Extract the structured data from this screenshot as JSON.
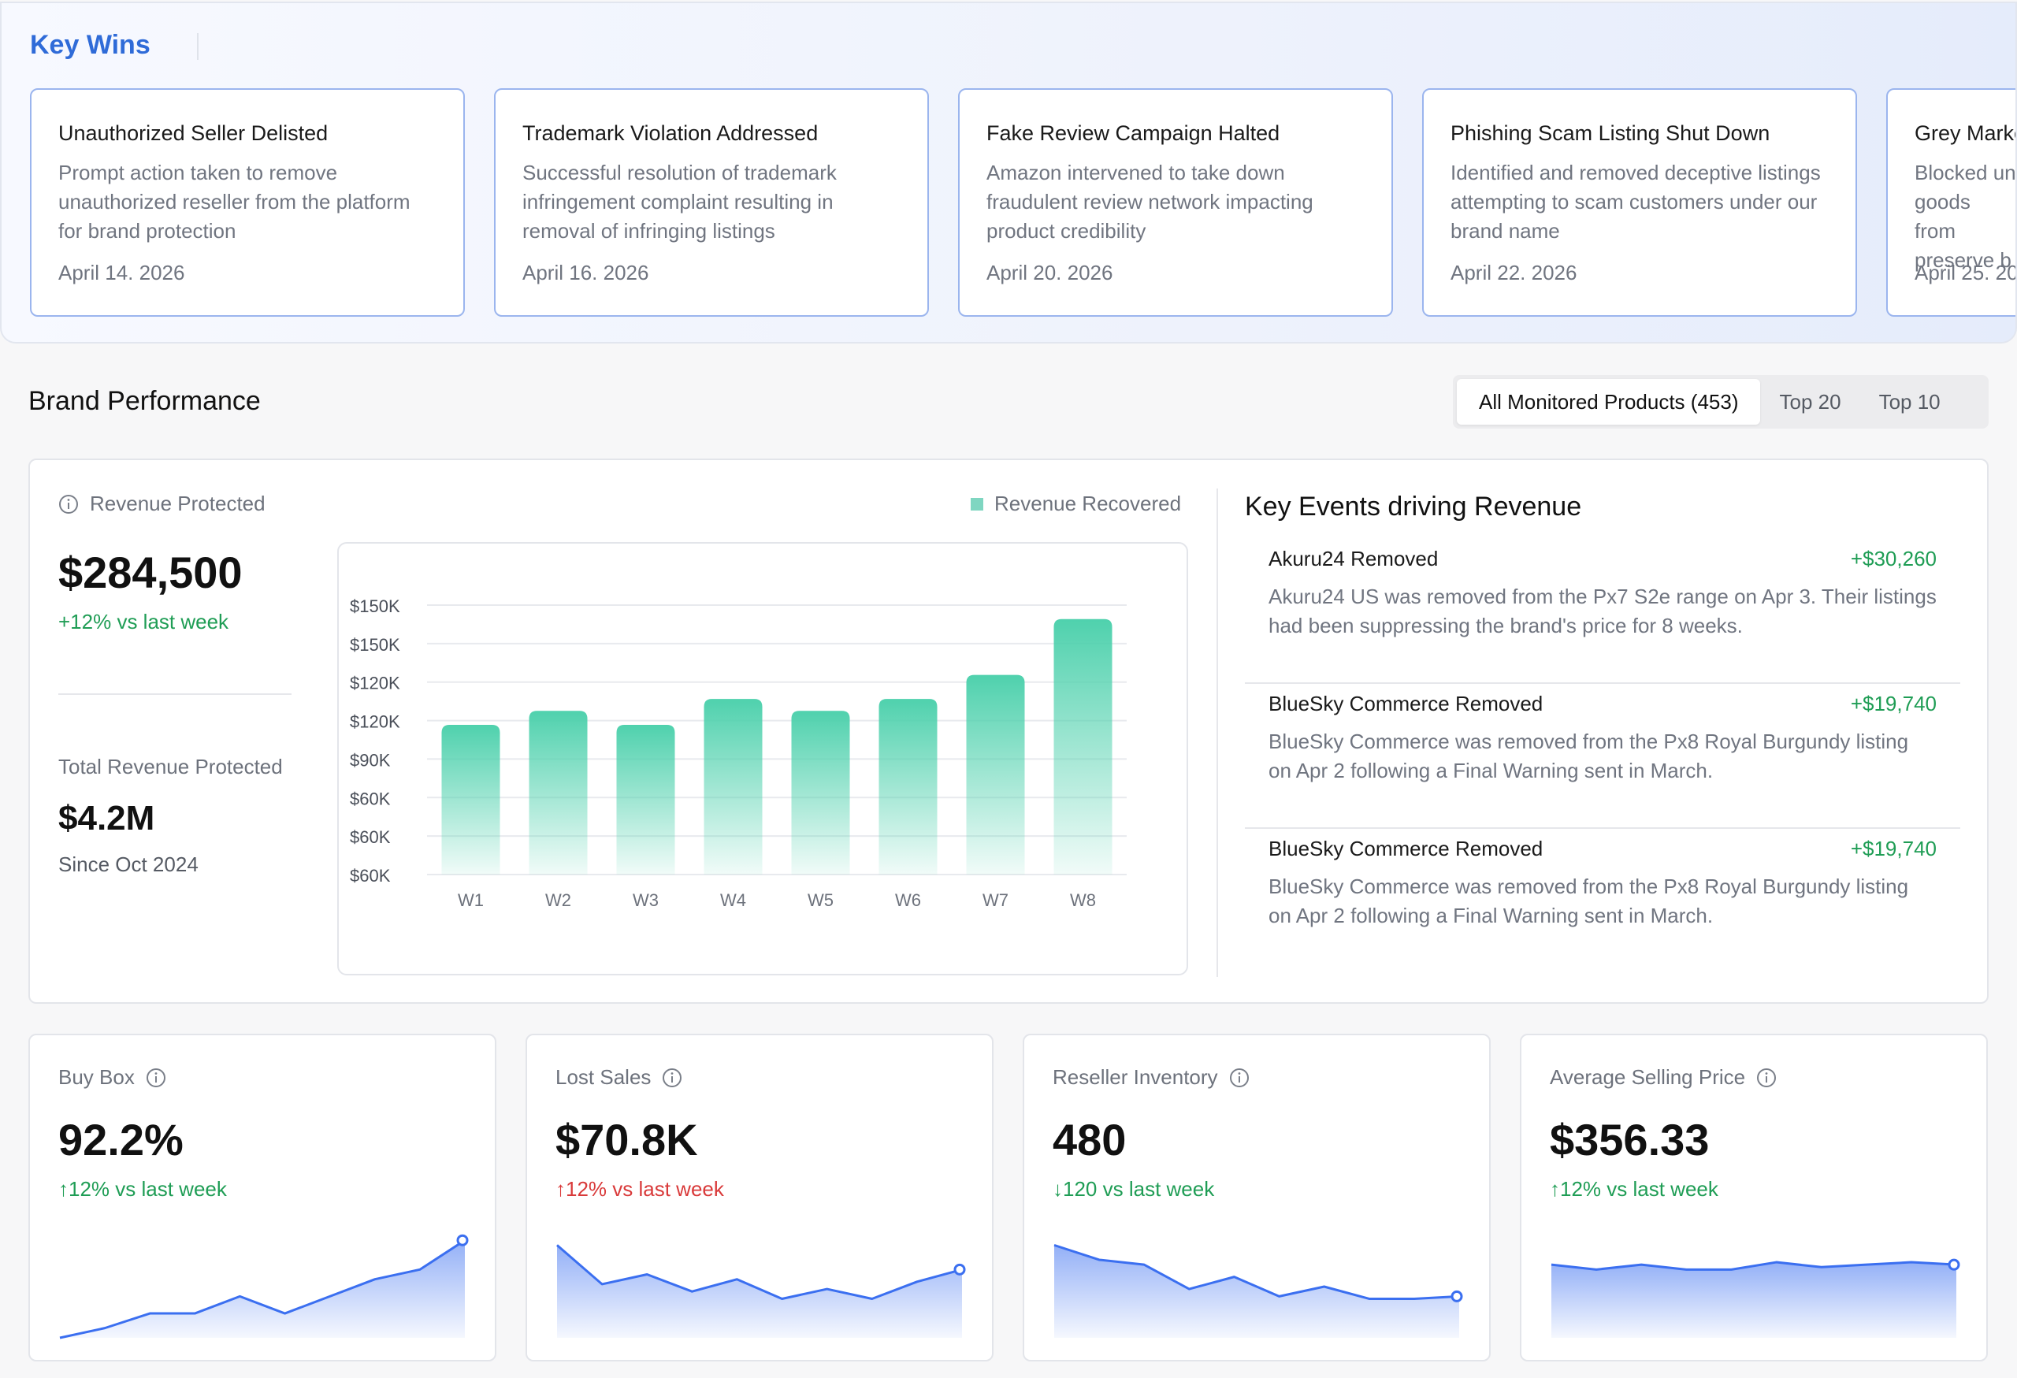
{
  "key_wins": {
    "title": "Key Wins",
    "cards": [
      {
        "title": "Unauthorized Seller Delisted",
        "description": "Prompt action taken to remove unauthorized reseller from the platform for brand protection",
        "date": "April 14. 2026"
      },
      {
        "title": "Trademark Violation Addressed",
        "description": "Successful resolution of trademark infringement complaint resulting in removal of infringing listings",
        "date": "April 16. 2026"
      },
      {
        "title": "Fake Review Campaign Halted",
        "description": "Amazon intervened to take down fraudulent review network impacting product credibility",
        "date": "April 20. 2026"
      },
      {
        "title": "Phishing Scam Listing Shut Down",
        "description": "Identified and removed deceptive listings attempting to scam customers under our brand name",
        "date": "April 22. 2026"
      },
      {
        "title": "Grey Marke",
        "description": "Blocked un goods from preserve b",
        "date": "April 25. 20"
      }
    ]
  },
  "brand_performance": {
    "title": "Brand Performance",
    "tabs": [
      {
        "label": "All Monitored Products (453)",
        "active": true
      },
      {
        "label": "Top 20",
        "active": false
      },
      {
        "label": "Top 10",
        "active": false
      }
    ]
  },
  "revenue": {
    "label": "Revenue Protected",
    "value": "$284,500",
    "change": "+12% vs last week",
    "total_label": "Total Revenue Protected",
    "total_value": "$4.2M",
    "since": "Since Oct 2024"
  },
  "chart_data": {
    "type": "bar",
    "legend": "Revenue Recovered",
    "legend_position": "top-right",
    "categories": [
      "W1",
      "W2",
      "W3",
      "W4",
      "W5",
      "W6",
      "W7",
      "W8"
    ],
    "y_tick_labels": [
      "$150K",
      "$150K",
      "$120K",
      "$120K",
      "$90K",
      "$60K",
      "$60K",
      "$60K"
    ],
    "values": [
      105,
      112,
      105,
      118,
      112,
      118,
      130,
      158
    ],
    "ylim": [
      30,
      165
    ],
    "grid": true,
    "bar_color": "#4fd1ad"
  },
  "key_events": {
    "title": "Key Events driving Revenue",
    "items": [
      {
        "name": "Akuru24 Removed",
        "amount": "+$30,260",
        "description": "Akuru24 US was removed from the Px7 S2e range on Apr 3. Their listings had been suppressing the brand's price for 8 weeks."
      },
      {
        "name": "BlueSky Commerce Removed",
        "amount": "+$19,740",
        "description": "BlueSky Commerce was removed from the Px8 Royal Burgundy listing on Apr 2 following a Final Warning sent in March."
      },
      {
        "name": "BlueSky Commerce Removed",
        "amount": "+$19,740",
        "description": "BlueSky Commerce was removed from the Px8 Royal Burgundy listing on Apr 2 following a Final Warning sent in March."
      }
    ]
  },
  "metrics": [
    {
      "label": "Buy Box",
      "value": "92.2%",
      "change": "↑12% vs last week",
      "trend_color": "green",
      "spark": [
        0,
        4,
        10,
        10,
        17,
        10,
        17,
        24,
        28,
        40
      ]
    },
    {
      "label": "Lost Sales",
      "value": "$70.8K",
      "change": "↑12% vs last week",
      "trend_color": "red",
      "spark": [
        38,
        22,
        26,
        19,
        24,
        16,
        20,
        16,
        23,
        28
      ]
    },
    {
      "label": "Reseller Inventory",
      "value": "480",
      "change": "↓120 vs last week",
      "trend_color": "green",
      "spark": [
        38,
        32,
        30,
        20,
        25,
        17,
        21,
        16,
        16,
        17
      ]
    },
    {
      "label": "Average Selling Price",
      "value": "$356.33",
      "change": "↑12% vs last week",
      "trend_color": "green",
      "spark": [
        30,
        28,
        30,
        28,
        28,
        31,
        29,
        30,
        31,
        30
      ]
    }
  ],
  "colors": {
    "accent_blue": "#2f6bd8",
    "positive": "#1f9d55",
    "negative": "#d93a3a",
    "bar": "#4fd1ad",
    "spark_line": "#3b6ff0"
  }
}
